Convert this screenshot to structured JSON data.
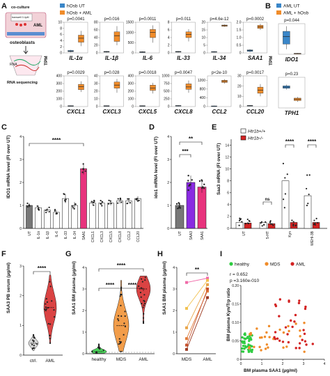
{
  "colors": {
    "blue": "#3a86c8",
    "orange": "#f08c2a",
    "pink": "#e8337d",
    "purple": "#8a2be2",
    "red": "#d32222",
    "green": "#2ecc40",
    "gray": "#888888"
  },
  "panel_letters": [
    "A",
    "B",
    "C",
    "D",
    "E",
    "F",
    "G",
    "H",
    "I"
  ],
  "schematic": {
    "co_culture": "co-culture",
    "transwell": "transwell 0.4μM",
    "aml": "AML",
    "osteoblasts": "osteoblasts",
    "rna": "RNA",
    "rna_sequencing": "RNA sequencing"
  },
  "chart_data": [
    {
      "panel": "A",
      "type": "box",
      "ylabel": "TPM",
      "legend": [
        "hOsb UT",
        "hOsb + AML"
      ],
      "genes": [
        {
          "name": "IL-1α",
          "p": "p=0.0041",
          "yticks": [
            "0",
            "2",
            "4",
            "6",
            "8",
            "10"
          ],
          "ut": [
            0.2,
            0.4,
            0.6,
            0.8,
            1.0
          ],
          "aml": [
            2.2,
            3.5,
            4.8,
            5.8,
            7.2
          ],
          "ymax": 10
        },
        {
          "name": "IL-1β",
          "p": "p=0.016",
          "yticks": [
            "0",
            "20",
            "40",
            "60",
            "80"
          ],
          "ut": [
            1,
            2,
            3,
            4,
            5
          ],
          "aml": [
            20,
            30,
            45,
            55,
            70
          ],
          "ymax": 80
        },
        {
          "name": "IL-6",
          "p": "p=0.0011",
          "yticks": [
            "0",
            "500",
            "1000",
            "1500"
          ],
          "ut": [
            10,
            20,
            40,
            60,
            80
          ],
          "aml": [
            500,
            750,
            1000,
            1150,
            1350
          ],
          "ymax": 1500
        },
        {
          "name": "IL-33",
          "p": "p=0.011",
          "yticks": [
            "0",
            "2",
            "4",
            "6",
            "8"
          ],
          "ut": [
            0.1,
            0.2,
            0.3,
            0.4,
            0.5
          ],
          "aml": [
            3.0,
            4.0,
            4.8,
            5.5,
            6.2
          ],
          "ymax": 8
        },
        {
          "name": "IL-34",
          "p": "p=4.6e-12",
          "yticks": [
            "0",
            "5",
            "10",
            "15",
            "20"
          ],
          "ut": [
            0.3,
            0.5,
            0.7,
            0.9,
            1.1
          ],
          "aml": [
            17.0,
            17.4,
            17.8,
            18.2,
            18.6
          ],
          "ymax": 20
        },
        {
          "name": "SAA1",
          "p": "p=0.0002",
          "yticks": [
            "0",
            "0.5",
            "1.0",
            "1.5",
            "2.0"
          ],
          "ut": [
            0.05,
            0.1,
            0.15,
            0.2,
            0.25
          ],
          "aml": [
            1.5,
            1.6,
            1.7,
            1.8,
            1.9
          ],
          "ymax": 2
        },
        {
          "name": "CXCL1",
          "p": "p=0.0029",
          "yticks": [
            "0",
            "100",
            "200",
            "300",
            "400"
          ],
          "ut": [
            2,
            5,
            8,
            11,
            14
          ],
          "aml": [
            190,
            220,
            260,
            290,
            330
          ],
          "ymax": 400
        },
        {
          "name": "CXCL3",
          "p": "p=0.028",
          "yticks": [
            "0",
            "10",
            "20",
            "30",
            "40"
          ],
          "ut": [
            0.2,
            0.5,
            0.8,
            1.1,
            1.4
          ],
          "aml": [
            18,
            24,
            28,
            32,
            36
          ],
          "ymax": 40
        },
        {
          "name": "CXCL5",
          "p": "p=0.0018",
          "yticks": [
            "0",
            "100",
            "200",
            "300",
            "400"
          ],
          "ut": [
            2,
            5,
            8,
            11,
            14
          ],
          "aml": [
            170,
            210,
            240,
            280,
            310
          ],
          "ymax": 400
        },
        {
          "name": "CXCL8",
          "p": "p=0.0047",
          "yticks": [
            "0",
            "250",
            "500",
            "750",
            "1000"
          ],
          "ut": [
            5,
            15,
            25,
            35,
            45
          ],
          "aml": [
            450,
            560,
            640,
            740,
            850
          ],
          "ymax": 1000
        },
        {
          "name": "CCL2",
          "p": "p<2e-10",
          "yticks": [
            "0",
            "400",
            "800",
            "1200"
          ],
          "ut": [
            5,
            10,
            20,
            30,
            40
          ],
          "aml": [
            1050,
            1100,
            1150,
            1200,
            1250
          ],
          "ymax": 1400
        },
        {
          "name": "CCL20",
          "p": "p=0.0017",
          "yticks": [
            "0",
            "10",
            "20",
            "30"
          ],
          "ut": [
            0.2,
            0.5,
            0.8,
            1.1,
            1.4
          ],
          "aml": [
            10,
            13,
            16,
            19,
            22
          ],
          "ymax": 30
        }
      ]
    },
    {
      "panel": "B",
      "type": "box",
      "ylabel": "TPM",
      "legend": [
        "AML UT",
        "AML + hOsb"
      ],
      "genes": [
        {
          "name": "IDO1",
          "p": "p=0.044",
          "ut": [
            10,
            20,
            35,
            45,
            55
          ],
          "aml": [
            0.5,
            1,
            1.5,
            2,
            2.5
          ],
          "ymax": 60
        },
        {
          "name": "TPH1",
          "p": "p=0.23",
          "ut": [
            0.3,
            0.32,
            0.34,
            0.36,
            0.38
          ],
          "aml": [
            0.1,
            0.12,
            0.14,
            0.16,
            0.18
          ],
          "ymax": 0.5
        }
      ]
    },
    {
      "panel": "C",
      "type": "bar",
      "ylabel": "IDO1 mRNA level (FI over UT)",
      "ylim": [
        0,
        4
      ],
      "yticks": [
        "0",
        "1",
        "2",
        "3",
        "4"
      ],
      "significance": "****",
      "categories": [
        "UT",
        "IL-1α",
        "IL-1β",
        "IL-6",
        "IL-33",
        "IL-34",
        "SAA1",
        "CXCL1",
        "CXCL3",
        "CXCL5",
        "CXCL8",
        "CCL2",
        "CCL20"
      ],
      "values": [
        1.0,
        0.9,
        0.8,
        0.7,
        1.3,
        1.0,
        2.6,
        1.1,
        1.1,
        1.1,
        1.2,
        1.2,
        1.3
      ],
      "errors": [
        0.1,
        0.1,
        0.1,
        0.1,
        0.2,
        0.15,
        0.25,
        0.1,
        0.1,
        0.1,
        0.12,
        0.1,
        0.1
      ]
    },
    {
      "panel": "D",
      "type": "bar",
      "ylabel": "ido1 mRNA level (FI over UT)",
      "ylim": [
        0,
        4
      ],
      "yticks": [
        "0",
        "1",
        "2",
        "3",
        "4"
      ],
      "categories": [
        "UT",
        "SAA3",
        "SAA1"
      ],
      "values": [
        1.0,
        2.0,
        1.8
      ],
      "errors": [
        0.1,
        0.3,
        0.25
      ],
      "significance": [
        "***",
        "**"
      ]
    },
    {
      "panel": "E",
      "type": "bar",
      "ylabel": "Saa3 mRNA (FI over UT)",
      "ylim": [
        0,
        15
      ],
      "yticks": [
        "0",
        "2",
        "4",
        "6",
        "8",
        "10",
        "12",
        "14"
      ],
      "legend": [
        "Htr1b+/+",
        "Htr1b-/-"
      ],
      "categories": [
        "UT",
        "5-HT",
        "Kyn",
        "WEHI-3B"
      ],
      "series": [
        {
          "name": "Htr1b+/+",
          "values": [
            1.0,
            1.0,
            8.0,
            5.5
          ]
        },
        {
          "name": "Htr1b-/-",
          "values": [
            0.9,
            0.8,
            1.0,
            1.0
          ]
        }
      ],
      "significance": [
        "ns",
        "****",
        "****"
      ]
    },
    {
      "panel": "F",
      "type": "violin",
      "ylabel": "SAA3 PB serum (μg/ml)",
      "ylim": [
        0,
        3
      ],
      "yticks": [
        "0",
        "1",
        "2",
        "3"
      ],
      "categories": [
        "ctrl.",
        "AML"
      ],
      "medians": [
        0.4,
        1.6
      ],
      "significance": "****"
    },
    {
      "panel": "G",
      "type": "violin",
      "ylabel": "SAA1 BM plasma (μg/ml)",
      "ylim": [
        0,
        4
      ],
      "yticks": [
        "0",
        "1",
        "2",
        "3",
        "4"
      ],
      "categories": [
        "healthy",
        "MDS",
        "AML"
      ],
      "medians": [
        0.1,
        1.3,
        3.0
      ],
      "significance": [
        "****",
        "****",
        "****"
      ]
    },
    {
      "panel": "H",
      "type": "paired-line",
      "ylabel": "SAA1 BM plasma (μg/ml)",
      "ylim": [
        0,
        4
      ],
      "yticks": [
        "0",
        "1",
        "2",
        "3",
        "4"
      ],
      "categories": [
        "MDS",
        "AML"
      ],
      "pairs": [
        [
          3.3,
          3.5
        ],
        [
          2.1,
          3.4
        ],
        [
          1.2,
          3.2
        ],
        [
          0.7,
          2.9
        ],
        [
          0.4,
          3.0
        ],
        [
          0.2,
          2.6
        ]
      ],
      "significance": "**"
    },
    {
      "panel": "I",
      "type": "scatter",
      "xlabel": "BM plasma SAA1 (μg/ml)",
      "ylabel": "BM plasma Kyn/Trp ratio",
      "xlim": [
        0,
        4
      ],
      "ylim": [
        0,
        0.2
      ],
      "xticks": [
        "0",
        "1",
        "2",
        "3",
        "4"
      ],
      "yticks": [
        "0",
        "0.05",
        "0.10",
        "0.15",
        "0.20"
      ],
      "legend": [
        "healthy",
        "MDS",
        "AML"
      ],
      "annotation_r": "r = 0.652",
      "annotation_p": "p =3.160e-010"
    }
  ]
}
